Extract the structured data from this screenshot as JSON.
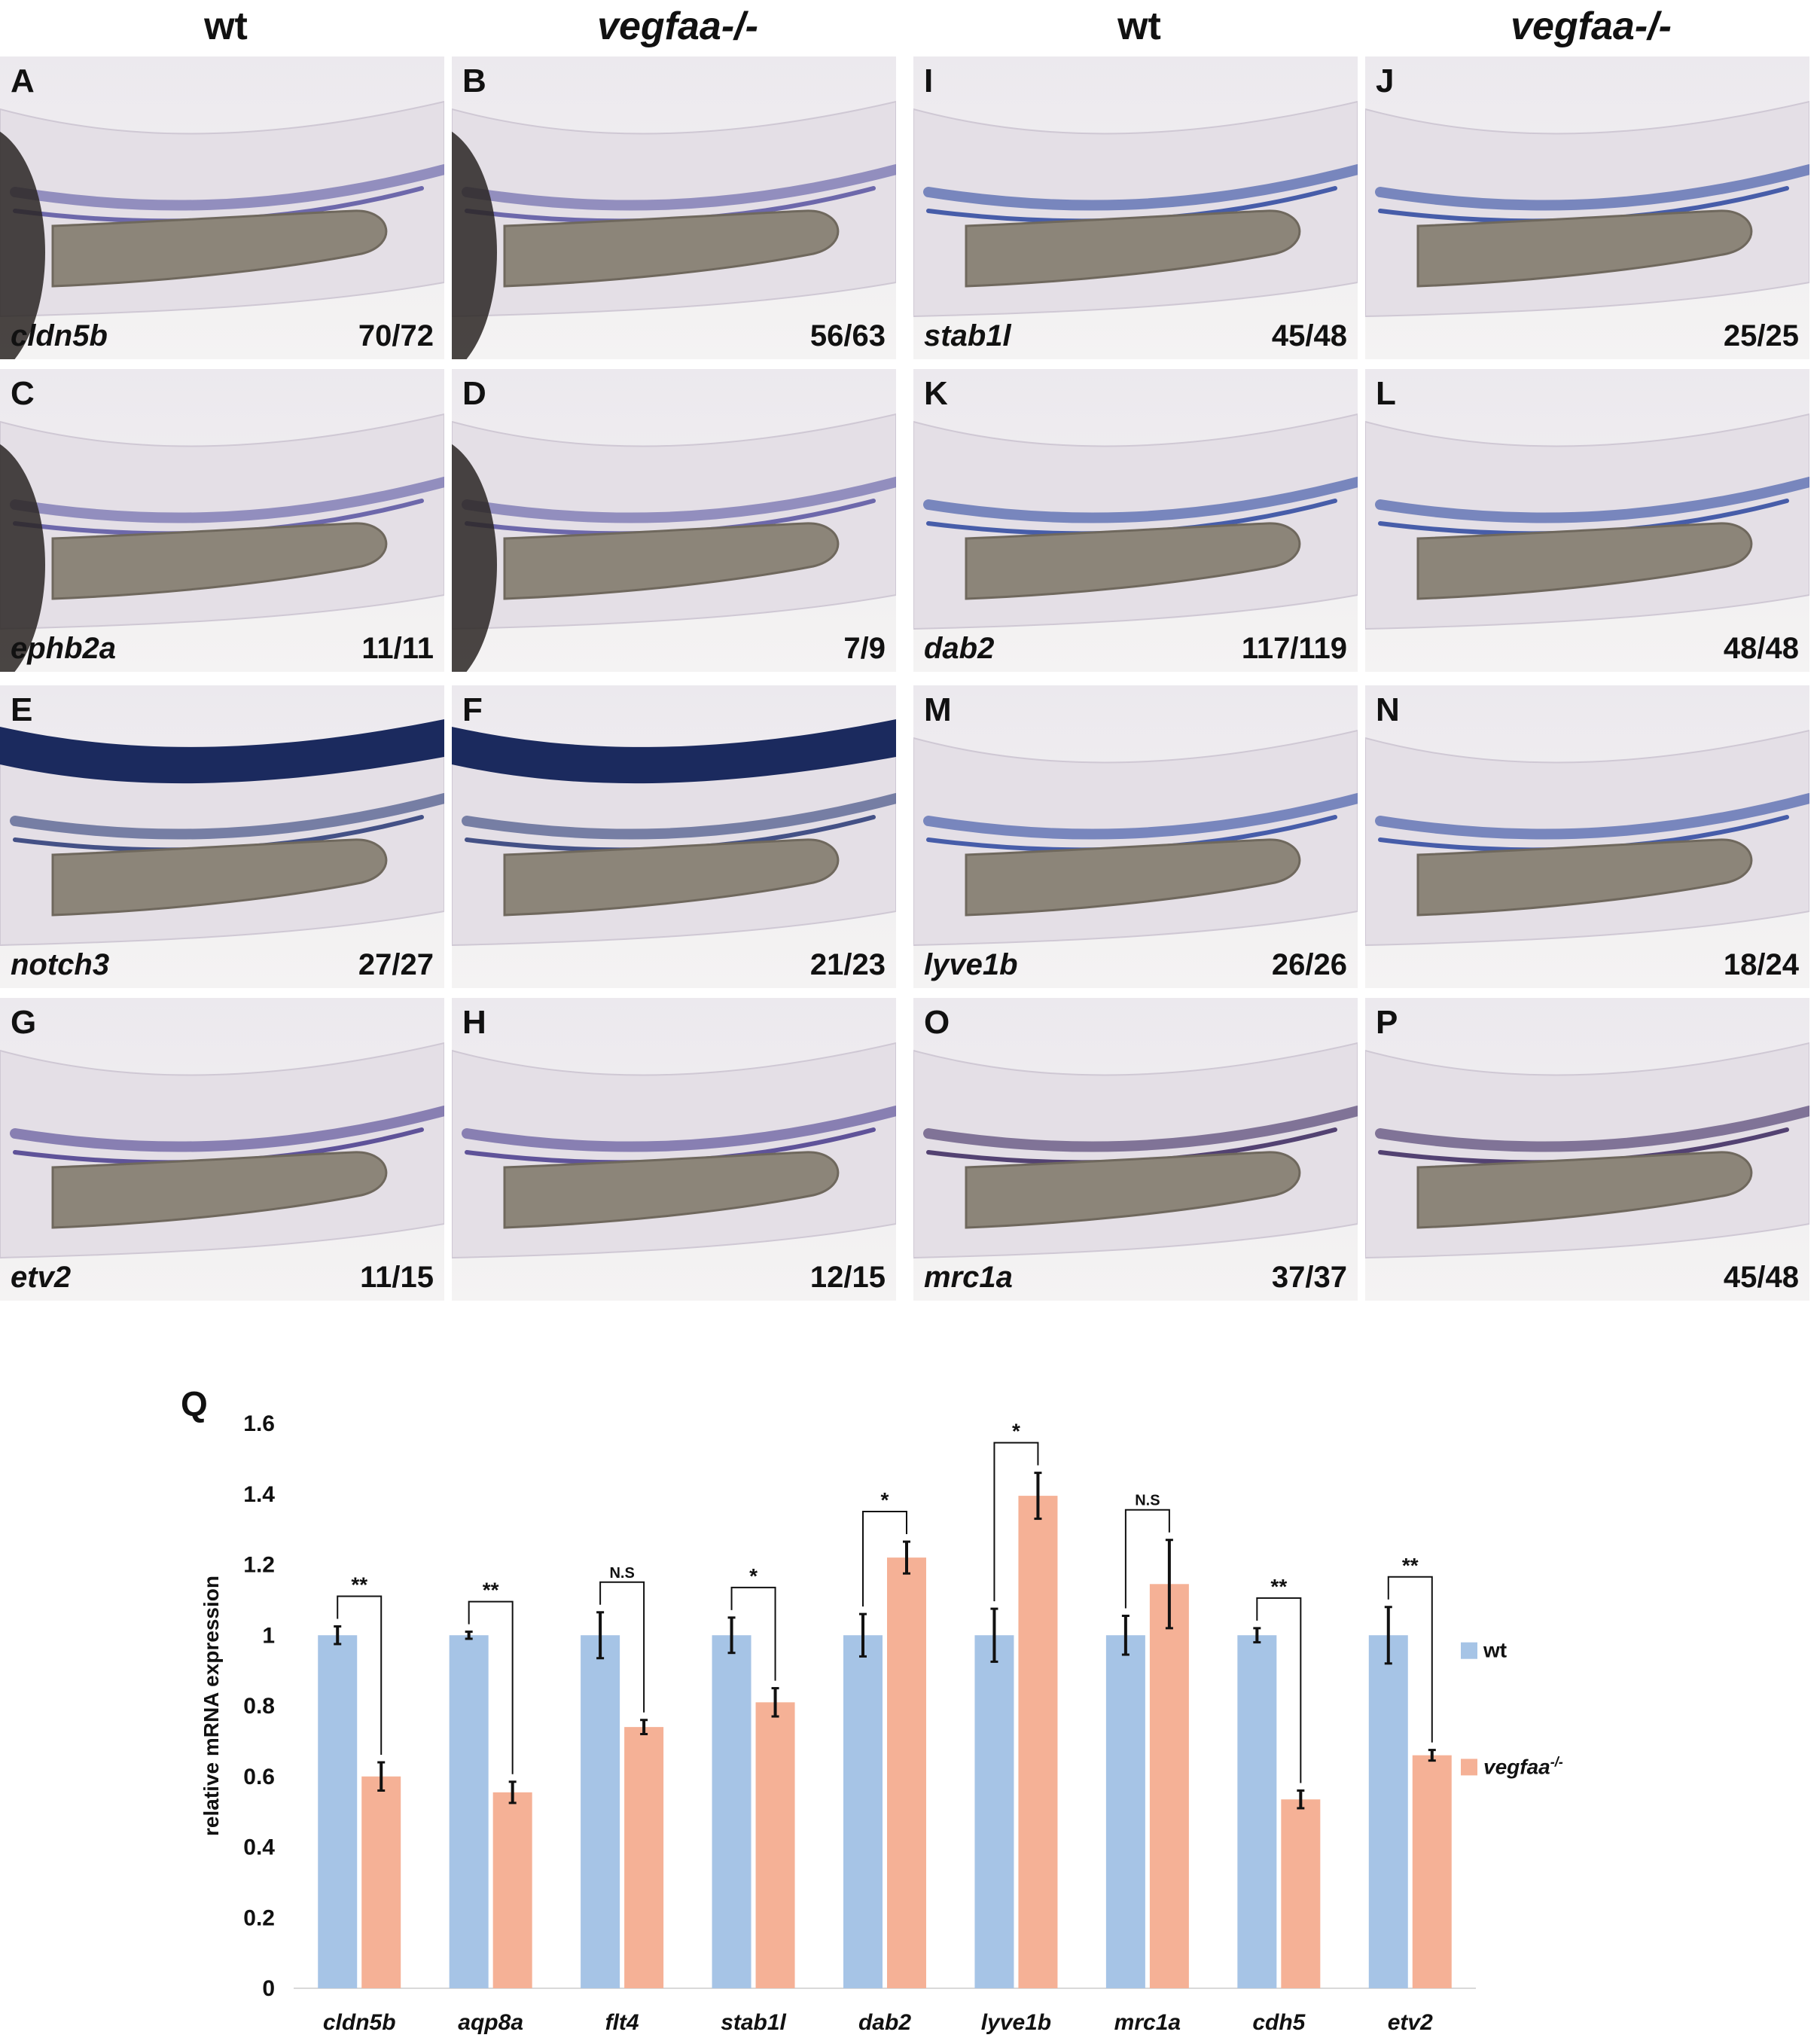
{
  "column_headers": [
    "wt",
    "vegfaa-/-",
    "wt",
    "vegfaa-/-"
  ],
  "panels": [
    {
      "label": "A",
      "gene": "cldn5b",
      "count": "70/72",
      "stain": "purple"
    },
    {
      "label": "B",
      "gene": "",
      "count": "56/63",
      "stain": "purple"
    },
    {
      "label": "I",
      "gene": "stab1l",
      "count": "45/48",
      "stain": "blue"
    },
    {
      "label": "J",
      "gene": "",
      "count": "25/25",
      "stain": "blue"
    },
    {
      "label": "C",
      "gene": "ephb2a",
      "count": "11/11",
      "stain": "purple"
    },
    {
      "label": "D",
      "gene": "",
      "count": "7/9",
      "stain": "purple"
    },
    {
      "label": "K",
      "gene": "dab2",
      "count": "117/119",
      "stain": "blue"
    },
    {
      "label": "L",
      "gene": "",
      "count": "48/48",
      "stain": "blue"
    },
    {
      "label": "E",
      "gene": "notch3",
      "count": "27/27",
      "stain": "navy"
    },
    {
      "label": "F",
      "gene": "",
      "count": "21/23",
      "stain": "navy"
    },
    {
      "label": "M",
      "gene": "lyve1b",
      "count": "26/26",
      "stain": "blue"
    },
    {
      "label": "N",
      "gene": "",
      "count": "18/24",
      "stain": "blue"
    },
    {
      "label": "G",
      "gene": "etv2",
      "count": "11/15",
      "stain": "violet"
    },
    {
      "label": "H",
      "gene": "",
      "count": "12/15",
      "stain": "violet"
    },
    {
      "label": "O",
      "gene": "mrc1a",
      "count": "37/37",
      "stain": "dark-purple"
    },
    {
      "label": "P",
      "gene": "",
      "count": "45/48",
      "stain": "dark-purple"
    }
  ],
  "colors": {
    "wt": "#a6c4e6",
    "vegfaa": "#f5b196",
    "error": "#111111",
    "stain_blue": "#2a3f9a",
    "stain_purple": "#5a4590"
  },
  "chart_data": {
    "type": "bar",
    "panel_label": "Q",
    "categories": [
      "cldn5b",
      "aqp8a",
      "flt4",
      "stab1l",
      "dab2",
      "lyve1b",
      "mrc1a",
      "cdh5",
      "etv2"
    ],
    "series": [
      {
        "name": "wt",
        "values": [
          1,
          1,
          1,
          1,
          1,
          1,
          1,
          1,
          1
        ],
        "errors": [
          0.025,
          0.01,
          0.065,
          0.05,
          0.06,
          0.075,
          0.055,
          0.02,
          0.08
        ]
      },
      {
        "name": "vegfaa-/-",
        "values": [
          0.6,
          0.555,
          0.74,
          0.81,
          1.22,
          1.395,
          1.145,
          0.535,
          0.66
        ],
        "errors": [
          0.04,
          0.03,
          0.02,
          0.04,
          0.045,
          0.065,
          0.125,
          0.025,
          0.015
        ]
      }
    ],
    "significance": [
      "**",
      "**",
      "N.S",
      "*",
      "*",
      "*",
      "N.S",
      "**",
      "**"
    ],
    "ylabel": "relative mRNA expression",
    "yticks": [
      "0",
      "0.2",
      "0.4",
      "0.6",
      "0.8",
      "1",
      "1.2",
      "1.4",
      "1.6"
    ],
    "ylim": [
      0,
      1.6
    ],
    "grid": false,
    "legend_position": "right"
  }
}
